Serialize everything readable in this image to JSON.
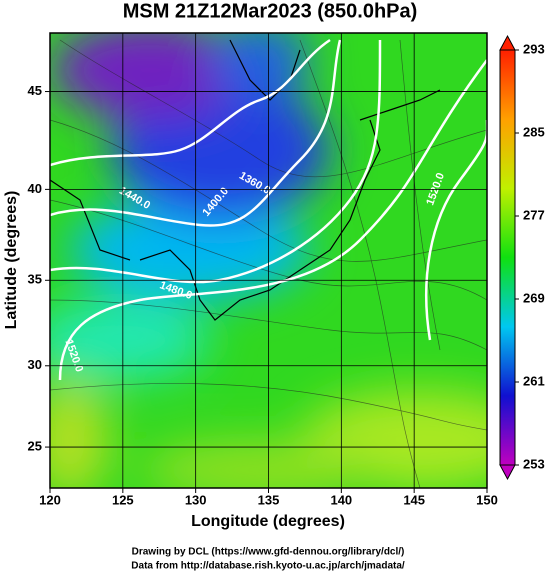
{
  "title": "MSM 21Z12Mar2023 (850.0hPa)",
  "x_label": "Longitude (degrees)",
  "y_label": "Latitude  (degrees)",
  "xlim": [
    120,
    150
  ],
  "xticks": [
    120,
    125,
    130,
    135,
    140,
    145,
    150
  ],
  "ylim": [
    22.4,
    47.8
  ],
  "yticks": [
    25,
    30,
    35,
    40,
    45
  ],
  "colorbar": {
    "lim": [
      253,
      293
    ],
    "ticks": [
      253,
      261,
      269,
      277,
      285,
      293
    ],
    "colors": [
      "#c000c0",
      "#1010d0",
      "#00c8f0",
      "#10e010",
      "#c0f000",
      "#ffa000",
      "#ff2000"
    ]
  },
  "contour_labels": [
    "1440.0",
    "1400.0",
    "1360.0",
    "1480.0",
    "1520.0",
    "1520.0"
  ],
  "footer": [
    "Drawing by DCL (https://www.gfd-dennou.org/library/dcl/)",
    "Data from http://database.rish.kyoto-u.ac.jp/arch/jmadata/"
  ]
}
